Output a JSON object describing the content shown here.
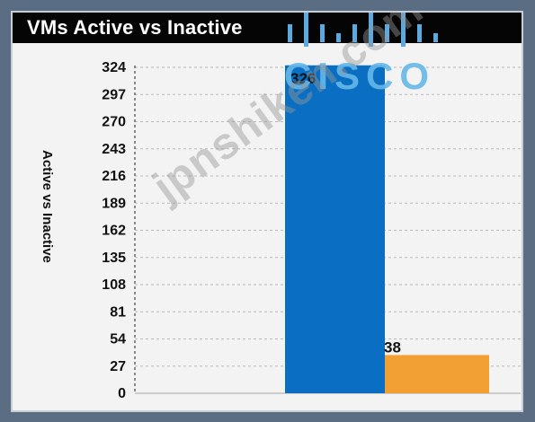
{
  "chart_data": {
    "type": "bar",
    "title": "VMs Active vs Inactive",
    "xlabel": "",
    "ylabel": "Active vs Inactive",
    "categories": [
      "",
      ""
    ],
    "values": [
      326,
      38
    ],
    "data_labels": [
      "326",
      "38"
    ],
    "yticks": [
      324,
      297,
      270,
      243,
      216,
      189,
      162,
      135,
      108,
      81,
      54,
      27,
      0
    ],
    "ylim": [
      0,
      330
    ],
    "grid": true,
    "legend": "none",
    "colors": {
      "active": "#0a6fc2",
      "inactive": "#f2a033",
      "background": "#f3f3f3",
      "frame": "#5b6d82",
      "title_bar": "#050505"
    }
  },
  "branding": {
    "logo_text": "CISCO",
    "watermark": "jpnshiken.com"
  }
}
